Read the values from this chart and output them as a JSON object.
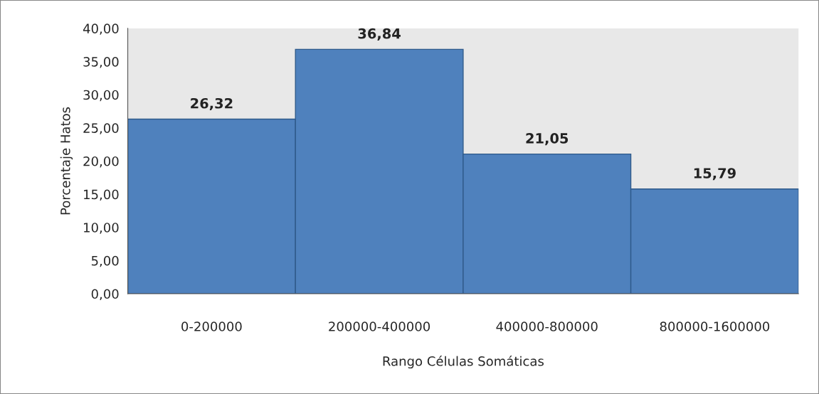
{
  "chart_data": {
    "type": "bar",
    "xlabel": "Rango Células Somáticas",
    "ylabel": "Porcentaje Hatos",
    "categories": [
      "0-200000",
      "200000-400000",
      "400000-800000",
      "800000-1600000"
    ],
    "values": [
      26.32,
      36.84,
      21.05,
      15.79
    ],
    "value_labels": [
      "26,32",
      "36,84",
      "21,05",
      "15,79"
    ],
    "color": "#4f81bd",
    "ylim": [
      0,
      40
    ],
    "yticks": [
      {
        "value": 0,
        "label": "0,00"
      },
      {
        "value": 5,
        "label": "5,00"
      },
      {
        "value": 10,
        "label": "10,00"
      },
      {
        "value": 15,
        "label": "15,00"
      },
      {
        "value": 20,
        "label": "20,00"
      },
      {
        "value": 25,
        "label": "25,00"
      },
      {
        "value": 30,
        "label": "30,00"
      },
      {
        "value": 35,
        "label": "35,00"
      },
      {
        "value": 40,
        "label": "40,00"
      }
    ],
    "grid": false,
    "legend": false
  }
}
